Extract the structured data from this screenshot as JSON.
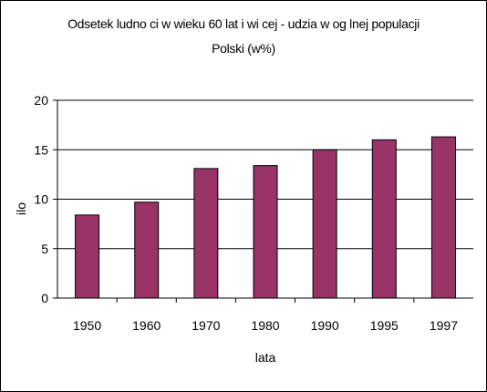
{
  "chart_data": {
    "type": "bar",
    "title_line1": "Odsetek ludno  ci w wieku 60 lat i wi  cej - udzia  w og  lnej populacji",
    "title_line2": "Polski (w%)",
    "xlabel": "lata",
    "ylabel": "ilo",
    "categories": [
      "1950",
      "1960",
      "1970",
      "1980",
      "1990",
      "1995",
      "1997"
    ],
    "values": [
      8.4,
      9.7,
      13.1,
      13.4,
      15.0,
      16.0,
      16.3
    ],
    "ylim": [
      0,
      20
    ],
    "yticks": [
      "0",
      "5",
      "10",
      "15",
      "20"
    ],
    "grid": true,
    "bar_color": "#993366",
    "legend": "none"
  }
}
